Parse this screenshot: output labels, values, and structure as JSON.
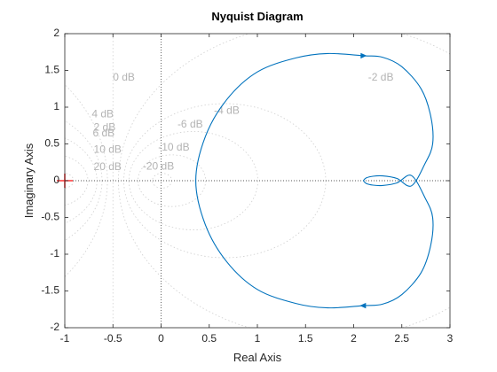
{
  "chart_data": {
    "type": "line",
    "title": "Nyquist Diagram",
    "xlabel": "Real Axis",
    "ylabel": "Imaginary Axis",
    "xlim": [
      -1,
      3
    ],
    "ylim": [
      -2,
      2
    ],
    "x_ticks": [
      "-1",
      "-0.5",
      "0",
      "0.5",
      "1",
      "1.5",
      "2",
      "2.5",
      "3"
    ],
    "y_ticks": [
      "-2",
      "-1.5",
      "-1",
      "-0.5",
      "0",
      "0.5",
      "1",
      "1.5",
      "2"
    ],
    "grid": "M-circles (dotted)",
    "critical_point": [
      -1,
      0
    ],
    "m_circle_labels": [
      {
        "text": "0 dB",
        "x": -0.5,
        "y": 1.4
      },
      {
        "text": "2 dB",
        "x": -0.7,
        "y": 0.72
      },
      {
        "text": "4 dB",
        "x": -0.72,
        "y": 0.9
      },
      {
        "text": "6 dB",
        "x": -0.71,
        "y": 0.64
      },
      {
        "text": "10 dB",
        "x": -0.7,
        "y": 0.42
      },
      {
        "text": "20 dB",
        "x": -0.7,
        "y": 0.18
      },
      {
        "text": "-2 dB",
        "x": 2.15,
        "y": 1.4
      },
      {
        "text": "-4 dB",
        "x": 0.55,
        "y": 0.95
      },
      {
        "text": "-6 dB",
        "x": 0.17,
        "y": 0.76
      },
      {
        "text": "-10 dB",
        "x": -0.03,
        "y": 0.45
      },
      {
        "text": "-20 dB",
        "x": -0.19,
        "y": 0.19
      }
    ],
    "series": [
      {
        "color": "#0072BD",
        "points": [
          [
            2.1,
            0
          ],
          [
            2.13,
            0.037
          ],
          [
            2.2,
            0.06
          ],
          [
            2.3,
            0.065
          ],
          [
            2.45,
            0.03
          ],
          [
            2.6,
            -0.07
          ],
          [
            2.74,
            0.23
          ],
          [
            2.82,
            0.5
          ],
          [
            2.8,
            0.88
          ],
          [
            2.7,
            1.25
          ],
          [
            2.5,
            1.55
          ],
          [
            2.3,
            1.68
          ],
          [
            2.1,
            1.7
          ],
          [
            1.73,
            1.73
          ],
          [
            1.4,
            1.67
          ],
          [
            1.0,
            1.48
          ],
          [
            0.68,
            1.1
          ],
          [
            0.46,
            0.6
          ],
          [
            0.36,
            0
          ],
          [
            0.46,
            -0.6
          ],
          [
            0.68,
            -1.1
          ],
          [
            1.0,
            -1.48
          ],
          [
            1.4,
            -1.67
          ],
          [
            1.73,
            -1.73
          ],
          [
            2.1,
            -1.7
          ],
          [
            2.3,
            -1.68
          ],
          [
            2.5,
            -1.55
          ],
          [
            2.7,
            -1.25
          ],
          [
            2.8,
            -0.88
          ],
          [
            2.82,
            -0.5
          ],
          [
            2.74,
            -0.23
          ],
          [
            2.6,
            0.07
          ],
          [
            2.45,
            -0.03
          ],
          [
            2.3,
            -0.065
          ],
          [
            2.2,
            -0.06
          ],
          [
            2.13,
            -0.037
          ],
          [
            2.1,
            0
          ]
        ],
        "arrows": [
          {
            "x": 2.1,
            "y": 1.7,
            "direction": "right"
          },
          {
            "x": 2.1,
            "y": -1.7,
            "direction": "left"
          }
        ]
      }
    ]
  }
}
